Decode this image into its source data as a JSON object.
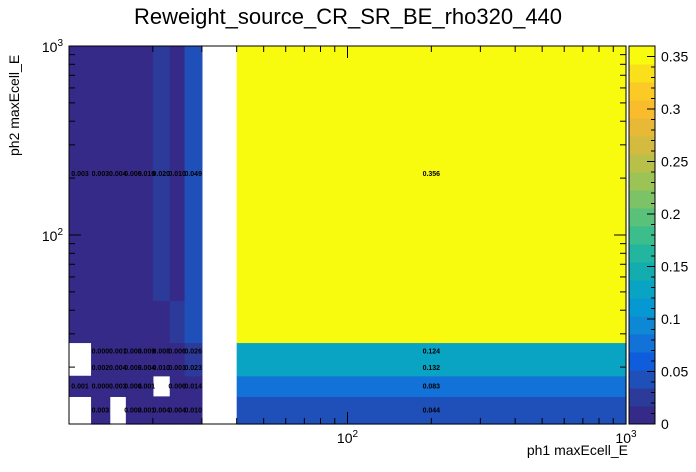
{
  "chart_data": {
    "type": "heatmap",
    "title": "Reweight_source_CR_SR_BE_rho320_440",
    "xlabel": "ph1 maxEcell_E",
    "ylabel": "ph2 maxEcell_E",
    "xscale": "log",
    "yscale": "log",
    "xlim": [
      10,
      1000
    ],
    "ylim": [
      10,
      1000
    ],
    "x_ticks": [
      {
        "value": 100,
        "base": "10",
        "exp": "2"
      },
      {
        "value": 1000,
        "base": "10",
        "exp": "3"
      }
    ],
    "y_ticks": [
      {
        "value": 100,
        "base": "10",
        "exp": "2"
      },
      {
        "value": 1000,
        "base": "10",
        "exp": "3"
      }
    ],
    "x_bin_edges": [
      10,
      12,
      14,
      16,
      18,
      20,
      23,
      26,
      30,
      40,
      1000
    ],
    "y_bin_edges": [
      10,
      14,
      18,
      22,
      27,
      34,
      45,
      1000
    ],
    "cells": [
      {
        "row": 0,
        "col": 1,
        "value": 0.003,
        "label": "0.003"
      },
      {
        "row": 0,
        "col": 3,
        "value": 0.003,
        "label": "0.003"
      },
      {
        "row": 0,
        "col": 4,
        "value": 0.001,
        "label": "0.001"
      },
      {
        "row": 0,
        "col": 5,
        "value": 0.004,
        "label": "0.004"
      },
      {
        "row": 0,
        "col": 6,
        "value": 0.004,
        "label": "0.004"
      },
      {
        "row": 0,
        "col": 7,
        "value": 0.01,
        "label": "0.010"
      },
      {
        "row": 0,
        "col": 9,
        "value": 0.044,
        "label": "0.044"
      },
      {
        "row": 1,
        "col": 0,
        "value": 0.001,
        "label": "0.001"
      },
      {
        "row": 1,
        "col": 1,
        "value": 0.0,
        "label": "0.000"
      },
      {
        "row": 1,
        "col": 2,
        "value": 0.003,
        "label": "0.003"
      },
      {
        "row": 1,
        "col": 3,
        "value": 0.004,
        "label": "0.004"
      },
      {
        "row": 1,
        "col": 4,
        "value": 0.001,
        "label": "0.001"
      },
      {
        "row": 1,
        "col": 6,
        "value": 0.006,
        "label": "0.006"
      },
      {
        "row": 1,
        "col": 7,
        "value": 0.014,
        "label": "0.014"
      },
      {
        "row": 1,
        "col": 9,
        "value": 0.083,
        "label": "0.083"
      },
      {
        "row": 2,
        "col": 1,
        "value": 0.002,
        "label": "0.002"
      },
      {
        "row": 2,
        "col": 2,
        "value": 0.004,
        "label": "0.004"
      },
      {
        "row": 2,
        "col": 3,
        "value": 0.003,
        "label": "0.003"
      },
      {
        "row": 2,
        "col": 4,
        "value": 0.004,
        "label": "0.004"
      },
      {
        "row": 2,
        "col": 5,
        "value": 0.01,
        "label": "0.010"
      },
      {
        "row": 2,
        "col": 6,
        "value": 0.001,
        "label": "0.001"
      },
      {
        "row": 2,
        "col": 7,
        "value": 0.023,
        "label": "0.023"
      },
      {
        "row": 2,
        "col": 9,
        "value": 0.132,
        "label": "0.132"
      },
      {
        "row": 3,
        "col": 1,
        "value": 0.0,
        "label": "0.000"
      },
      {
        "row": 3,
        "col": 2,
        "value": 0.001,
        "label": "0.001"
      },
      {
        "row": 3,
        "col": 3,
        "value": 0.003,
        "label": "0.003"
      },
      {
        "row": 3,
        "col": 4,
        "value": 0.009,
        "label": "0.009"
      },
      {
        "row": 3,
        "col": 5,
        "value": 0.008,
        "label": "0.008"
      },
      {
        "row": 3,
        "col": 6,
        "value": 0.006,
        "label": "0.006"
      },
      {
        "row": 3,
        "col": 7,
        "value": 0.026,
        "label": "0.026"
      },
      {
        "row": 3,
        "col": 9,
        "value": 0.124,
        "label": "0.124"
      },
      {
        "row": 4,
        "col": 0,
        "value": 0.001,
        "label": ""
      },
      {
        "row": 4,
        "col": 1,
        "value": 0.001,
        "label": ""
      },
      {
        "row": 4,
        "col": 2,
        "value": 0.001,
        "label": ""
      },
      {
        "row": 4,
        "col": 3,
        "value": 0.001,
        "label": ""
      },
      {
        "row": 4,
        "col": 4,
        "value": 0.001,
        "label": ""
      },
      {
        "row": 4,
        "col": 5,
        "value": 0.001,
        "label": ""
      },
      {
        "row": 4,
        "col": 6,
        "value": 0.02,
        "label": ""
      },
      {
        "row": 4,
        "col": 7,
        "value": 0.045,
        "label": ""
      },
      {
        "row": 4,
        "col": 9,
        "value": 0.356,
        "label": ""
      },
      {
        "row": 5,
        "col": 0,
        "value": 0.001,
        "label": ""
      },
      {
        "row": 5,
        "col": 1,
        "value": 0.001,
        "label": ""
      },
      {
        "row": 5,
        "col": 2,
        "value": 0.001,
        "label": ""
      },
      {
        "row": 5,
        "col": 3,
        "value": 0.001,
        "label": ""
      },
      {
        "row": 5,
        "col": 4,
        "value": 0.001,
        "label": ""
      },
      {
        "row": 5,
        "col": 5,
        "value": 0.001,
        "label": ""
      },
      {
        "row": 5,
        "col": 6,
        "value": 0.02,
        "label": ""
      },
      {
        "row": 5,
        "col": 7,
        "value": 0.045,
        "label": ""
      },
      {
        "row": 5,
        "col": 9,
        "value": 0.356,
        "label": ""
      },
      {
        "row": 6,
        "col": 0,
        "value": 0.003,
        "label": "0.003"
      },
      {
        "row": 6,
        "col": 1,
        "value": 0.003,
        "label": "0.003"
      },
      {
        "row": 6,
        "col": 2,
        "value": 0.004,
        "label": "0.004"
      },
      {
        "row": 6,
        "col": 3,
        "value": 0.006,
        "label": "0.006"
      },
      {
        "row": 6,
        "col": 4,
        "value": 0.01,
        "label": "0.010"
      },
      {
        "row": 6,
        "col": 5,
        "value": 0.02,
        "label": "0.020"
      },
      {
        "row": 6,
        "col": 6,
        "value": 0.01,
        "label": "0.010"
      },
      {
        "row": 6,
        "col": 7,
        "value": 0.049,
        "label": "0.049"
      },
      {
        "row": 6,
        "col": 9,
        "value": 0.356,
        "label": "0.356"
      }
    ],
    "colorbar": {
      "min": 0,
      "max": 0.36,
      "ticks": [
        {
          "value": 0,
          "label": "0"
        },
        {
          "value": 0.05,
          "label": "0.05"
        },
        {
          "value": 0.1,
          "label": "0.1"
        },
        {
          "value": 0.15,
          "label": "0.15"
        },
        {
          "value": 0.2,
          "label": "0.2"
        },
        {
          "value": 0.25,
          "label": "0.25"
        },
        {
          "value": 0.3,
          "label": "0.3"
        },
        {
          "value": 0.35,
          "label": "0.35"
        }
      ],
      "palette": [
        "#352a87",
        "#2c3b9a",
        "#1f4fb8",
        "#0f5cdd",
        "#1272d8",
        "#0e87d4",
        "#0698d2",
        "#09a3c3",
        "#13adb0",
        "#22b69f",
        "#3bbd8c",
        "#59c179",
        "#7bc366",
        "#9bc356",
        "#b9c049",
        "#d2bb3f",
        "#e7b937",
        "#f8bc2d",
        "#fcca26",
        "#f9e01a",
        "#f9fb0e"
      ]
    }
  }
}
